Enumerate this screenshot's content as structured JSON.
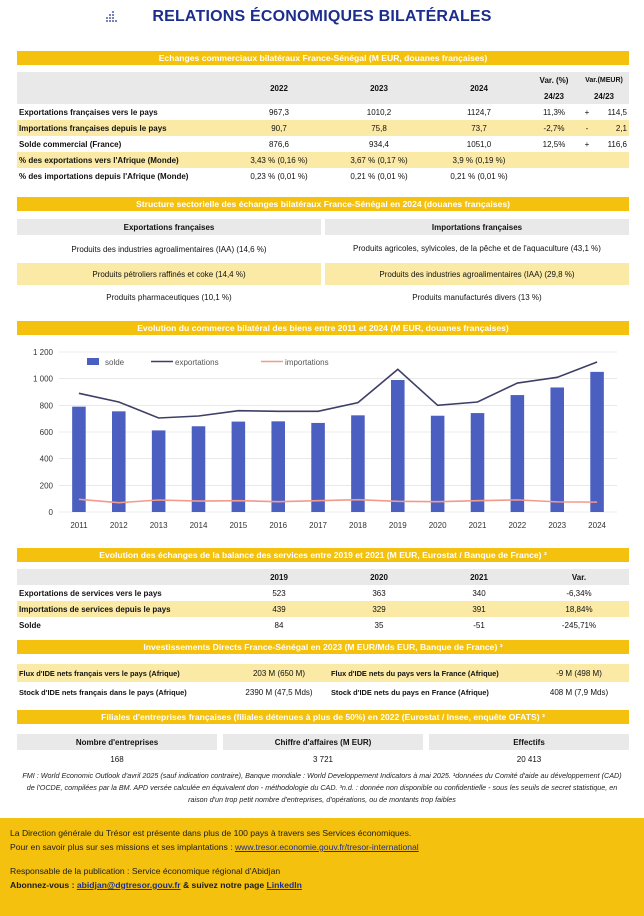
{
  "title": "RELATIONS ÉCONOMIQUES BILATÉRALES",
  "sec1": {
    "band": "Echanges commerciaux bilatéraux France-Sénégal (M EUR, douanes françaises)",
    "headers": [
      "2022",
      "2023",
      "2024",
      "Var. (%)",
      "Var.(MEUR)"
    ],
    "subheaders": [
      "24/23",
      "24/23"
    ],
    "rows": [
      {
        "label": "Exportations françaises vers le pays",
        "v": [
          "967,3",
          "1010,2",
          "1124,7",
          "11,3%",
          "+",
          "114,5"
        ]
      },
      {
        "label": "Importations françaises depuis le pays",
        "v": [
          "90,7",
          "75,8",
          "73,7",
          "-2,7%",
          "-",
          "2,1"
        ]
      },
      {
        "label": "Solde commercial (France)",
        "v": [
          "876,6",
          "934,4",
          "1051,0",
          "12,5%",
          "+",
          "116,6"
        ]
      },
      {
        "label": "% des exportations vers l'Afrique (Monde)",
        "v": [
          "3,43 % (0,16 %)",
          "3,67 % (0,17 %)",
          "3,9 % (0,19 %)",
          "",
          "",
          ""
        ]
      },
      {
        "label": "% des importations depuis l'Afrique (Monde)",
        "v": [
          "0,23 % (0,01 %)",
          "0,21 % (0,01 %)",
          "0,21 % (0,01 %)",
          "",
          "",
          ""
        ]
      }
    ]
  },
  "sec2": {
    "band": "Structure sectorielle des échanges bilatéraux France-Sénégal en 2024 (douanes françaises)",
    "col1": "Exportations françaises",
    "col2": "Importations françaises",
    "rows": [
      [
        "Produits des industries agroalimentaires (IAA) (14,6 %)",
        "Produits agricoles, sylvicoles, de la pêche et de l'aquaculture (43,1 %)"
      ],
      [
        "Produits pétroliers raffinés et coke (14,4 %)",
        "Produits des industries agroalimentaires (IAA) (29,8 %)"
      ],
      [
        "Produits pharmaceutiques (10,1 %)",
        "Produits manufacturés divers (13 %)"
      ]
    ]
  },
  "sec3": {
    "band": "Evolution du commerce bilatéral des biens entre 2011 et 2024 (M EUR, douanes françaises)"
  },
  "chart_data": {
    "type": "bar",
    "categories": [
      "2011",
      "2012",
      "2013",
      "2014",
      "2015",
      "2016",
      "2017",
      "2018",
      "2019",
      "2020",
      "2021",
      "2022",
      "2023",
      "2024"
    ],
    "series": [
      {
        "name": "solde",
        "type": "bar",
        "color": "#4a5fbf",
        "values": [
          790,
          755,
          612,
          643,
          678,
          680,
          668,
          725,
          990,
          722,
          742,
          877,
          934,
          1051
        ]
      },
      {
        "name": "exportations",
        "type": "line",
        "color": "#3d3f66",
        "values": [
          890,
          825,
          705,
          720,
          760,
          755,
          755,
          820,
          1070,
          800,
          825,
          967,
          1010,
          1125
        ]
      },
      {
        "name": "importations",
        "type": "line",
        "color": "#f39a8a",
        "values": [
          95,
          70,
          90,
          82,
          85,
          77,
          85,
          92,
          80,
          77,
          85,
          91,
          76,
          74
        ]
      }
    ],
    "yticks": [
      "0",
      "200",
      "400",
      "600",
      "800",
      "1 000",
      "1 200"
    ],
    "ylim": [
      0,
      1200
    ]
  },
  "sec4": {
    "band": "Evolution des échanges de la balance des services entre 2019 et 2021 (M EUR, Eurostat / Banque de France) ³",
    "headers": [
      "2019",
      "2020",
      "2021",
      "Var."
    ],
    "rows": [
      {
        "label": "Exportations de services vers le pays",
        "v": [
          "523",
          "363",
          "340",
          "-6,34%"
        ]
      },
      {
        "label": "Importations de services depuis le pays",
        "v": [
          "439",
          "329",
          "391",
          "18,84%"
        ]
      },
      {
        "label": "Solde",
        "v": [
          "84",
          "35",
          "-51",
          "-245,71%"
        ]
      }
    ]
  },
  "sec5": {
    "band": "Investissements Directs France-Sénégal en 2023 (M EUR/Mds EUR, Banque de France) ³",
    "rows": [
      [
        "Flux d'IDE nets français vers le pays (Afrique)",
        "203 M (650 M)",
        "Flux d'IDE nets du pays vers la France (Afrique)",
        "-9 M (498 M)"
      ],
      [
        "Stock d'IDE nets français dans le pays (Afrique)",
        "2390 M (47,5 Mds)",
        "Stock d'IDE nets du pays  en France (Afrique)",
        "408 M (7,9 Mds)"
      ]
    ]
  },
  "sec6": {
    "band": "Filiales d'entreprises françaises (filiales détenues à plus de 50%) en 2022 (Eurostat / Insee, enquête OFATS) ³",
    "headers": [
      "Nombre d'entreprises",
      "Chiffre d'affaires (M EUR)",
      "Effectifs"
    ],
    "values": [
      "168",
      "3 721",
      "20 413"
    ]
  },
  "notes": "FMI : World Economic Outlook d'avril 2025 (sauf indication contraire), Banque mondiale : World Developpement Indicators à mai 2025. ¹données du Comité d'aide au développement (CAD) de l'OCDE, compilées par la BM. APD versée calculée en équivalent don - méthodologie du CAD. ³n.d. : donnée non disponible ou confidentielle - sous les seuils de secret statistique, en raison d'un trop petit nombre d'entreprises, d'opérations, ou de montants trop faibles",
  "footer": {
    "line1": "La Direction générale du Trésor est présente dans plus de 100 pays à travers ses Services économiques.",
    "line2_prefix": "Pour en savoir plus sur ses missions et ses implantations : ",
    "line2_link": "www.tresor.economie.gouv.fr/tresor-international",
    "line3": "Responsable de la publication : Service économique régional d'Abidjan",
    "line4_prefix": "Abonnez-vous : ",
    "line4_link": "abidjan@dgtresor.gouv.fr",
    "line4_mid": " & suivez notre page ",
    "line4_link2": "LinkedIn"
  }
}
